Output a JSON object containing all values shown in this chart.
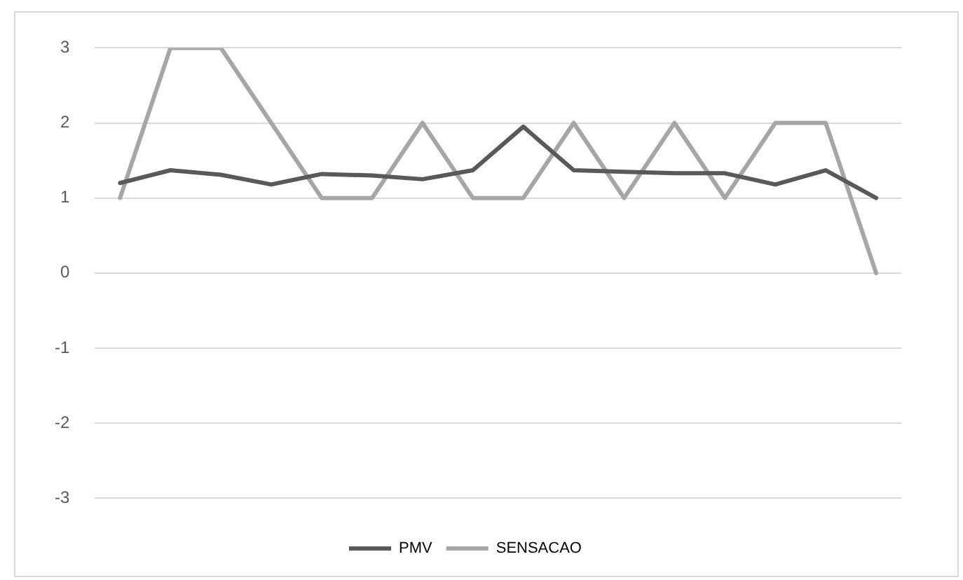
{
  "chart_data": {
    "type": "line",
    "categories": [
      null,
      null,
      null,
      null,
      null,
      null,
      null,
      null,
      null,
      null,
      null,
      null,
      null,
      null,
      null,
      null
    ],
    "series": [
      {
        "name": "PMV",
        "color": "#595959",
        "values": [
          1.2,
          1.37,
          1.31,
          1.18,
          1.32,
          1.3,
          1.25,
          1.37,
          1.95,
          1.37,
          1.35,
          1.33,
          1.33,
          1.18,
          1.37,
          1.0
        ]
      },
      {
        "name": "SENSACAO",
        "color": "#a6a6a6",
        "values": [
          1,
          3,
          3,
          2,
          1,
          1,
          2,
          1,
          1,
          2,
          1,
          2,
          1,
          2,
          2,
          0
        ]
      }
    ],
    "ylim": [
      -3,
      3
    ],
    "yticks": [
      -3,
      -2,
      -1,
      0,
      1,
      2,
      3
    ],
    "grid": "y",
    "legend": "bottom",
    "marker": "none",
    "line_style": "solid"
  }
}
